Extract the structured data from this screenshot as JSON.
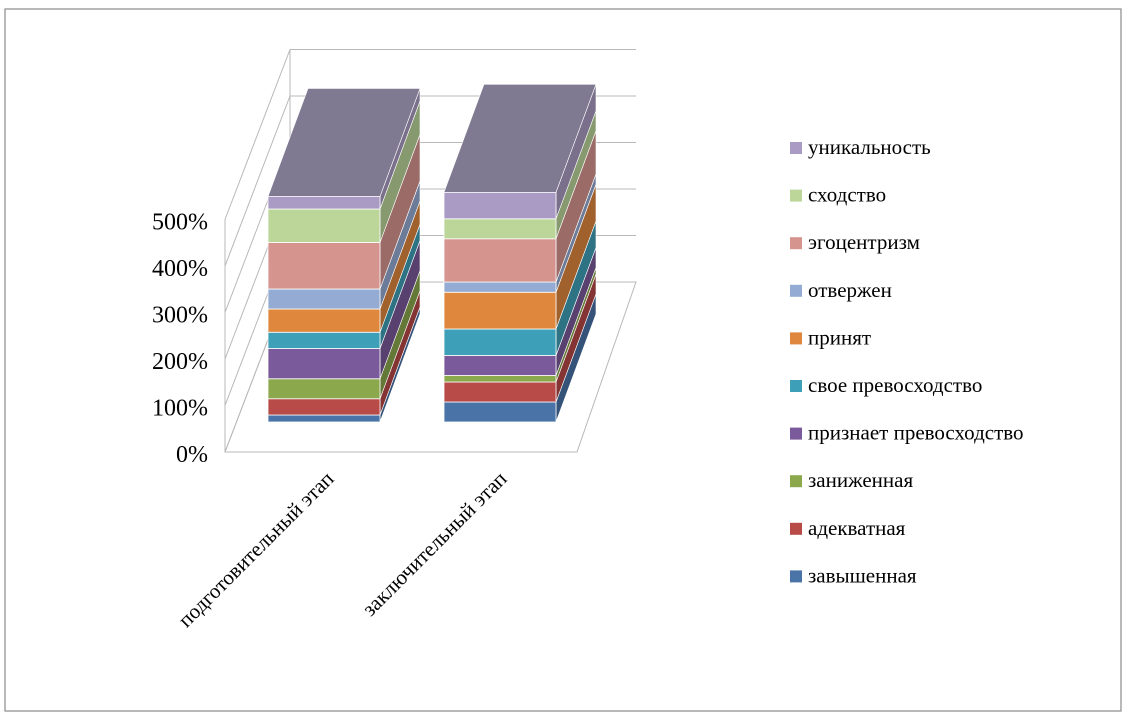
{
  "chart_data": {
    "type": "bar",
    "stacked": true,
    "three_d": true,
    "categories": [
      "подготовительный этап",
      "заключительный этап"
    ],
    "y_ticks": [
      "0%",
      "100%",
      "200%",
      "300%",
      "400%",
      "500%"
    ],
    "ylim": [
      0,
      500
    ],
    "grid": true,
    "legend_position": "right",
    "series": [
      {
        "name": "завышенная",
        "color": "#4a73a8",
        "values": [
          15,
          43
        ]
      },
      {
        "name": "адекватная",
        "color": "#b84a47",
        "values": [
          35,
          43
        ]
      },
      {
        "name": "заниженная",
        "color": "#8ba84c",
        "values": [
          43,
          14
        ]
      },
      {
        "name": "признает превосходство",
        "color": "#7a5a9a",
        "values": [
          65,
          43
        ]
      },
      {
        "name": "свое превосходство",
        "color": "#3ea0b8",
        "values": [
          35,
          57
        ]
      },
      {
        "name": "принят",
        "color": "#e0873e",
        "values": [
          50,
          79
        ]
      },
      {
        "name": "отвержен",
        "color": "#94abd3",
        "values": [
          43,
          22
        ]
      },
      {
        "name": "эгоцентризм",
        "color": "#d6948f",
        "values": [
          100,
          93
        ]
      },
      {
        "name": "сходство",
        "color": "#bcd69a",
        "values": [
          72,
          43
        ]
      },
      {
        "name": "уникальность",
        "color": "#a99bc3",
        "values": [
          27,
          57
        ]
      }
    ]
  }
}
